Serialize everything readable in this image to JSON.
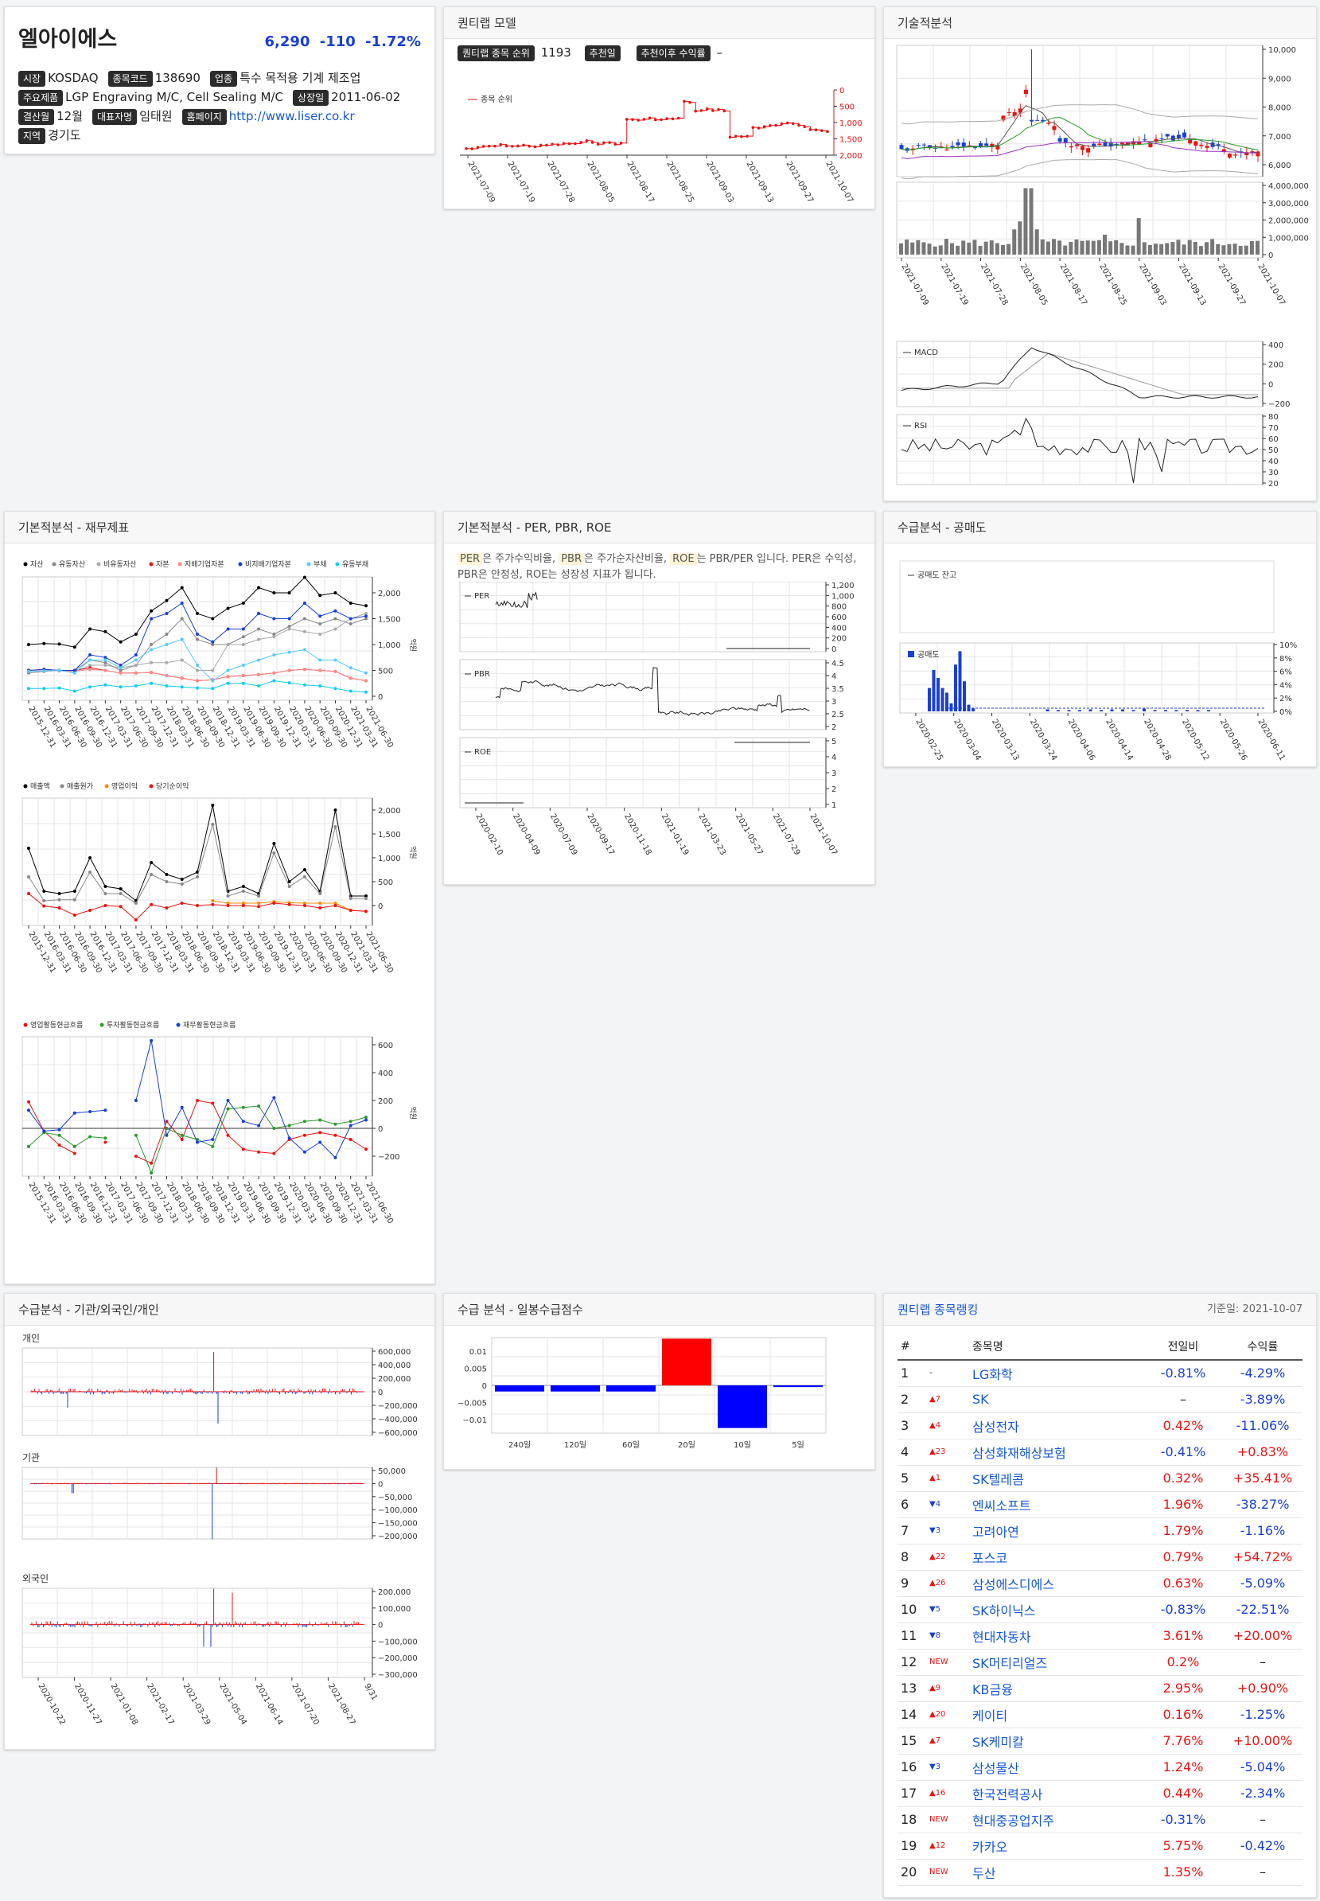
{
  "company": {
    "name": "엘아이에스",
    "price": "6,290",
    "change": "-110",
    "change_pct": "-1.72%",
    "fields": [
      {
        "label": "시장",
        "value": "KOSDAQ"
      },
      {
        "label": "종목코드",
        "value": "138690"
      },
      {
        "label": "업종",
        "value": "특수 목적용 기계 제조업"
      },
      {
        "label": "주요제품",
        "value": "LGP Engraving M/C, Cell Sealing M/C"
      },
      {
        "label": "상장일",
        "value": "2011-06-02"
      },
      {
        "label": "결산월",
        "value": "12월"
      },
      {
        "label": "대표자명",
        "value": "임태원"
      },
      {
        "label": "홈페이지",
        "value": "http://www.liser.co.kr"
      },
      {
        "label": "지역",
        "value": "경기도"
      }
    ]
  },
  "quantlab": {
    "title": "퀀티랩 모델",
    "rank_label": "퀀티랩 종목 순위",
    "rank_value": "1193",
    "rec_label": "추천일",
    "ret_label": "추천이후 수익률",
    "ret_value": "–",
    "legend": "종목 순위",
    "yticks": [
      "0",
      "500",
      "1,000",
      "1,500",
      "2,000"
    ],
    "dates": [
      "2021-07-09",
      "2021-07-19",
      "2021-07-28",
      "2021-08-05",
      "2021-08-17",
      "2021-08-25",
      "2021-09-03",
      "2021-09-13",
      "2021-09-27",
      "2021-10-07"
    ]
  },
  "technical": {
    "title": "기술적분석",
    "price_ticks": [
      "10,000",
      "9,000",
      "8,000",
      "7,000",
      "6,000"
    ],
    "vol_ticks": [
      "4,000,000",
      "3,000,000",
      "2,000,000",
      "1,000,000",
      "0"
    ],
    "dates": [
      "2021-07-09",
      "2021-07-19",
      "2021-07-28",
      "2021-08-05",
      "2021-08-17",
      "2021-08-25",
      "2021-09-03",
      "2021-09-13",
      "2021-09-27",
      "2021-10-07"
    ],
    "macd_label": "MACD",
    "macd_ticks": [
      "400",
      "200",
      "0",
      "−200"
    ],
    "rsi_label": "RSI",
    "rsi_ticks": [
      "80",
      "70",
      "60",
      "50",
      "40",
      "30",
      "20"
    ]
  },
  "fundamental": {
    "title": "기본적분석 - 재무제표",
    "legend1": [
      "자산",
      "유동자산",
      "비유동자산",
      "자본",
      "지배기업자본",
      "비지배기업자본",
      "부채",
      "유동부채"
    ],
    "legend2": [
      "매출액",
      "매출원가",
      "영업이익",
      "당기순이익"
    ],
    "legend3": [
      "영업활동현금흐름",
      "투자활동현금흐름",
      "재무활동현금흐름"
    ],
    "unit": "억원",
    "ticks1": [
      "2,000",
      "1,500",
      "1,000",
      "500",
      "0"
    ],
    "ticks2": [
      "2,000",
      "1,500",
      "1,000",
      "500",
      "0"
    ],
    "ticks3": [
      "600",
      "400",
      "200",
      "0",
      "−200"
    ],
    "dates": [
      "2015-12-31",
      "2016-03-31",
      "2016-06-30",
      "2016-09-30",
      "2016-12-31",
      "2017-03-31",
      "2017-06-30",
      "2017-09-30",
      "2017-12-31",
      "2018-03-31",
      "2018-06-30",
      "2018-09-30",
      "2018-12-31",
      "2019-03-31",
      "2019-06-30",
      "2019-09-30",
      "2019-12-31",
      "2020-03-31",
      "2020-06-30",
      "2020-09-30",
      "2020-12-31",
      "2021-03-31",
      "2021-06-30"
    ]
  },
  "per": {
    "title": "기본적분석 - PER, PBR, ROE",
    "desc_parts": [
      "PER",
      "은 주가수익비율, ",
      "PBR",
      "은 주가순자산비율, ",
      "ROE",
      "는 PBR/PER 입니다. PER은 수익성, PBR은 안정성, ROE는 성장성 지표가 됩니다."
    ],
    "labels": [
      "PER",
      "PBR",
      "ROE"
    ],
    "per_ticks": [
      "1,200",
      "1,000",
      "800",
      "600",
      "400",
      "200",
      "0"
    ],
    "pbr_ticks": [
      "4.5",
      "4",
      "3.5",
      "3",
      "2.5",
      "2"
    ],
    "roe_ticks": [
      "5",
      "4",
      "3",
      "2",
      "1"
    ],
    "dates": [
      "2020-02-10",
      "2020-04-09",
      "2020-07-09",
      "2020-09-17",
      "2020-11-18",
      "2021-01-19",
      "2021-03-23",
      "2021-05-27",
      "2021-07-29",
      "2021-10-07"
    ]
  },
  "short": {
    "title": "수급분석 - 공매도",
    "balance_label": "공매도 잔고",
    "short_label": "공매도",
    "ticks": [
      "10%",
      "8%",
      "6%",
      "4%",
      "2%",
      "0%"
    ],
    "dates": [
      "2020-02-25",
      "2020-03-04",
      "2020-03-13",
      "2020-03-24",
      "2020-04-06",
      "2020-04-14",
      "2020-04-28",
      "2020-05-12",
      "2020-05-26",
      "2020-06-11"
    ]
  },
  "investor": {
    "title": "수급분석 - 기관/외국인/개인",
    "labels": [
      "개인",
      "기관",
      "외국인"
    ],
    "t1": [
      "600,000",
      "400,000",
      "200,000",
      "0",
      "−200,000",
      "−400,000",
      "−600,000"
    ],
    "t2": [
      "50,000",
      "0",
      "−50,000",
      "−100,000",
      "−150,000",
      "−200,000"
    ],
    "t3": [
      "200,000",
      "100,000",
      "0",
      "−100,000",
      "−200,000",
      "−300,000"
    ],
    "dates": [
      "2020-10-22",
      "2020-11-27",
      "2021-01-08",
      "2021-02-17",
      "2021-03-29",
      "2021-05-04",
      "2021-06-14",
      "2021-07-20",
      "2021-08-27",
      "9/31"
    ]
  },
  "daily": {
    "title": "수급 분석 - 일봉수급점수",
    "ticks": [
      "0.01",
      "0.005",
      "0",
      "−0.005",
      "−0.01"
    ]
  },
  "chart_data": {
    "type": "bar",
    "categories": [
      "240일",
      "120일",
      "60일",
      "20일",
      "10일",
      "5일"
    ],
    "values": [
      -0.0018,
      -0.0018,
      -0.0018,
      0.0137,
      -0.0125,
      -0.0005
    ],
    "colors": [
      "#0000ff",
      "#0000ff",
      "#0000ff",
      "#ff0000",
      "#0000ff",
      "#0000ff"
    ],
    "ylim": [
      -0.014,
      0.014
    ]
  },
  "ranking": {
    "title": "퀀티랩 종목랭킹",
    "date": "기준일: 2021-10-07",
    "headers": [
      "#",
      "종목명",
      "전일비",
      "수익률"
    ],
    "rows": [
      {
        "n": "1",
        "mv": "-",
        "md": "n",
        "name": "LG화학",
        "chg": "-0.81%",
        "cd": "dn",
        "ret": "-4.29%",
        "rd": "dn"
      },
      {
        "n": "2",
        "mv": "▲7",
        "md": "up",
        "name": "SK",
        "chg": "–",
        "cd": "",
        "ret": "-3.89%",
        "rd": "dn"
      },
      {
        "n": "3",
        "mv": "▲4",
        "md": "up",
        "name": "삼성전자",
        "chg": "0.42%",
        "cd": "up",
        "ret": "-11.06%",
        "rd": "dn"
      },
      {
        "n": "4",
        "mv": "▲23",
        "md": "up",
        "name": "삼성화재해상보험",
        "chg": "-0.41%",
        "cd": "dn",
        "ret": "+0.83%",
        "rd": "up"
      },
      {
        "n": "5",
        "mv": "▲1",
        "md": "up",
        "name": "SK텔레콤",
        "chg": "0.32%",
        "cd": "up",
        "ret": "+35.41%",
        "rd": "up"
      },
      {
        "n": "6",
        "mv": "▼4",
        "md": "dn",
        "name": "엔씨소프트",
        "chg": "1.96%",
        "cd": "up",
        "ret": "-38.27%",
        "rd": "dn"
      },
      {
        "n": "7",
        "mv": "▼3",
        "md": "dn",
        "name": "고려아연",
        "chg": "1.79%",
        "cd": "up",
        "ret": "-1.16%",
        "rd": "dn"
      },
      {
        "n": "8",
        "mv": "▲22",
        "md": "up",
        "name": "포스코",
        "chg": "0.79%",
        "cd": "up",
        "ret": "+54.72%",
        "rd": "up"
      },
      {
        "n": "9",
        "mv": "▲26",
        "md": "up",
        "name": "삼성에스디에스",
        "chg": "0.63%",
        "cd": "up",
        "ret": "-5.09%",
        "rd": "dn"
      },
      {
        "n": "10",
        "mv": "▼5",
        "md": "dn",
        "name": "SK하이닉스",
        "chg": "-0.83%",
        "cd": "dn",
        "ret": "-22.51%",
        "rd": "dn"
      },
      {
        "n": "11",
        "mv": "▼8",
        "md": "dn",
        "name": "현대자동차",
        "chg": "3.61%",
        "cd": "up",
        "ret": "+20.00%",
        "rd": "up"
      },
      {
        "n": "12",
        "mv": "NEW",
        "md": "up",
        "name": "SK머티리얼즈",
        "chg": "0.2%",
        "cd": "up",
        "ret": "–",
        "rd": ""
      },
      {
        "n": "13",
        "mv": "▲9",
        "md": "up",
        "name": "KB금융",
        "chg": "2.95%",
        "cd": "up",
        "ret": "+0.90%",
        "rd": "up"
      },
      {
        "n": "14",
        "mv": "▲20",
        "md": "up",
        "name": "케이티",
        "chg": "0.16%",
        "cd": "up",
        "ret": "-1.25%",
        "rd": "dn"
      },
      {
        "n": "15",
        "mv": "▲7",
        "md": "up",
        "name": "SK케미칼",
        "chg": "7.76%",
        "cd": "up",
        "ret": "+10.00%",
        "rd": "up"
      },
      {
        "n": "16",
        "mv": "▼3",
        "md": "dn",
        "name": "삼성물산",
        "chg": "1.24%",
        "cd": "up",
        "ret": "-5.04%",
        "rd": "dn"
      },
      {
        "n": "17",
        "mv": "▲16",
        "md": "up",
        "name": "한국전력공사",
        "chg": "0.44%",
        "cd": "up",
        "ret": "-2.34%",
        "rd": "dn"
      },
      {
        "n": "18",
        "mv": "NEW",
        "md": "up",
        "name": "현대중공업지주",
        "chg": "-0.31%",
        "cd": "dn",
        "ret": "–",
        "rd": ""
      },
      {
        "n": "19",
        "mv": "▲12",
        "md": "up",
        "name": "카카오",
        "chg": "5.75%",
        "cd": "up",
        "ret": "-0.42%",
        "rd": "dn"
      },
      {
        "n": "20",
        "mv": "NEW",
        "md": "up",
        "name": "두산",
        "chg": "1.35%",
        "cd": "up",
        "ret": "–",
        "rd": ""
      }
    ]
  }
}
